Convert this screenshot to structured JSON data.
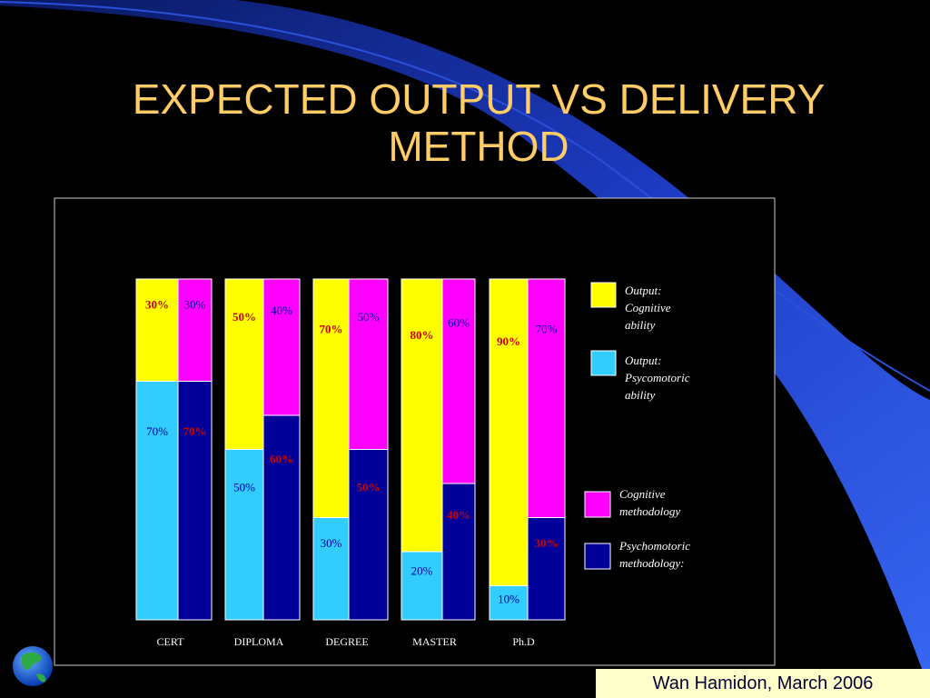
{
  "slide": {
    "title_line1": "EXPECTED OUTPUT VS DELIVERY",
    "title_line2": "METHOD",
    "footer": "Wan Hamidon,  March 2006"
  },
  "colors": {
    "background": "#000000",
    "title": "#ffcc66",
    "cognitive_output": "#ffff00",
    "psycomotoric_output": "#33ccff",
    "cognitive_methodology": "#ff00ff",
    "psychomotoric_methodology": "#000099",
    "footer_bg": "#ffffcc"
  },
  "chart_data": {
    "type": "bar",
    "stacked": true,
    "categories": [
      "CERT",
      "DIPLOMA",
      "DEGREE",
      "MASTER",
      "Ph.D"
    ],
    "output_bar": [
      {
        "name": "Output: Cognitive ability",
        "values": [
          30,
          50,
          70,
          80,
          90
        ]
      },
      {
        "name": "Output: Psycomotoric ability",
        "values": [
          70,
          50,
          30,
          20,
          10
        ]
      }
    ],
    "methodology_bar": [
      {
        "name": "Cognitive methodology",
        "values": [
          30,
          40,
          50,
          60,
          70
        ]
      },
      {
        "name": "Psychomotoric methodology",
        "values": [
          70,
          60,
          50,
          40,
          30
        ]
      }
    ],
    "ylim": [
      0,
      100
    ],
    "value_suffix": "%",
    "legend": [
      {
        "lines": [
          "Output:",
          "Cognitive",
          "ability"
        ],
        "color": "#ffff00"
      },
      {
        "lines": [
          "Output:",
          "Psycomotoric",
          "ability"
        ],
        "color": "#33ccff"
      },
      {
        "lines": [
          "Cognitive",
          "methodology"
        ],
        "color": "#ff00ff"
      },
      {
        "lines": [
          "Psychomotoric",
          "methodology:"
        ],
        "color": "#000099"
      }
    ],
    "legend_position": "right",
    "grid": false
  }
}
